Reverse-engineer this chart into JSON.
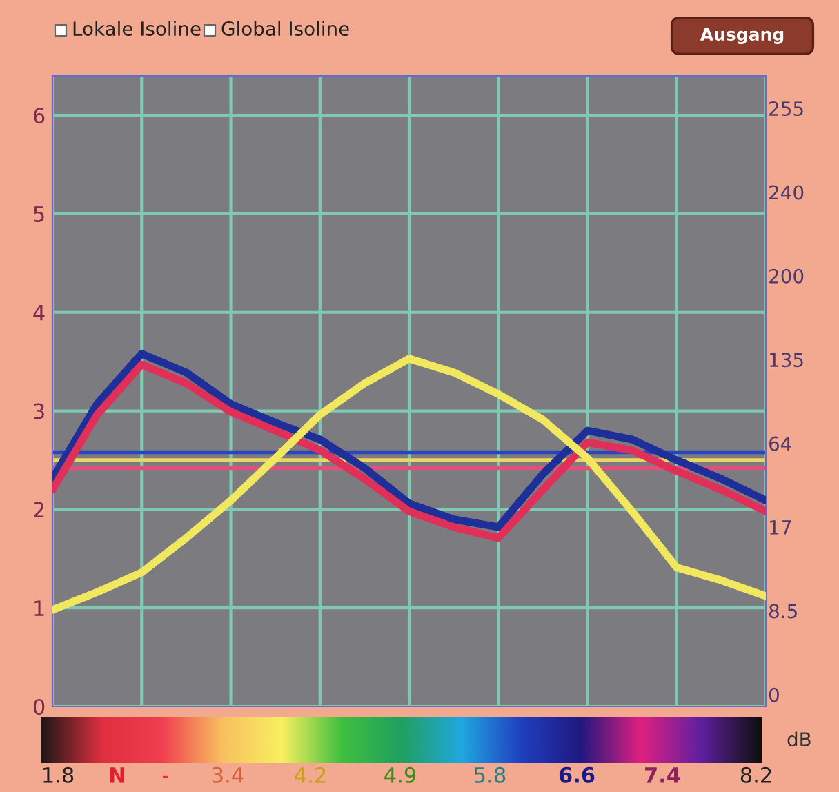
{
  "chart_data": {
    "type": "line",
    "categories": [
      null,
      null,
      null,
      null,
      null,
      null,
      null,
      null,
      null,
      null,
      null,
      null,
      null,
      null,
      null,
      null,
      null
    ],
    "series": [
      {
        "color": "#1f2f9a",
        "values": [
          2.31,
          3.07,
          3.58,
          3.39,
          3.07,
          2.88,
          2.71,
          2.42,
          2.06,
          1.9,
          1.82,
          2.36,
          2.8,
          2.71,
          2.5,
          2.31,
          2.09
        ]
      },
      {
        "color": "#e0305a",
        "values": [
          2.2,
          2.96,
          3.47,
          3.28,
          2.99,
          2.8,
          2.6,
          2.31,
          1.98,
          1.82,
          1.71,
          2.2,
          2.68,
          2.6,
          2.39,
          2.2,
          1.98
        ]
      },
      {
        "color": "#f2e860",
        "values": [
          0.98,
          1.16,
          1.36,
          1.71,
          2.09,
          2.52,
          2.96,
          3.28,
          3.53,
          3.39,
          3.17,
          2.91,
          2.52,
          1.98,
          1.41,
          1.28,
          1.12
        ]
      }
    ],
    "ref_lines": [
      {
        "axis": "y",
        "value": 2.58,
        "color": "#2a45c0"
      },
      {
        "axis": "y",
        "value": 2.5,
        "color": "#e8d860"
      },
      {
        "axis": "y",
        "value": 2.42,
        "color": "#e0507a"
      }
    ],
    "ylim": [
      0,
      6.4
    ],
    "yticks": [
      0,
      1,
      2,
      3,
      4,
      5,
      6
    ],
    "tick_labels": "y",
    "grid": true,
    "line_style": "solid",
    "annotations": [
      "Lokale Isoline",
      "Global Isoline",
      "Ausgang",
      "dB",
      "1.8",
      "N",
      "-",
      "3.4",
      "4.2",
      "4.9",
      "5.8",
      "6.6",
      "7.4",
      "8.2",
      "255",
      "240",
      "200",
      "135",
      "64",
      "17",
      "8.5",
      "0"
    ]
  }
}
